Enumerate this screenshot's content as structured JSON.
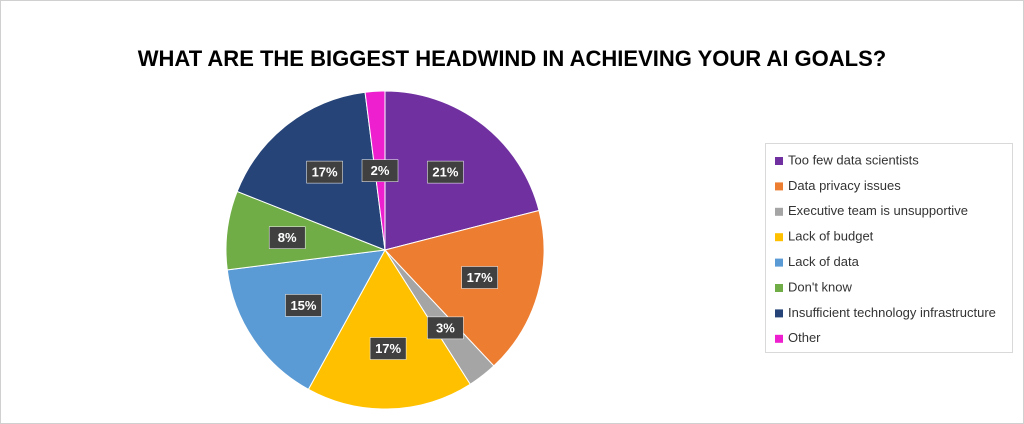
{
  "chart_data": {
    "type": "pie",
    "title": "WHAT ARE THE BIGGEST HEADWIND IN ACHIEVING YOUR AI GOALS?",
    "categories": [
      "Too few data scientists",
      "Data privacy issues",
      "Executive team is unsupportive",
      "Lack of budget",
      "Lack of data",
      "Don't know",
      "Insufficient technology infrastructure",
      "Other"
    ],
    "values": [
      21,
      17,
      3,
      17,
      15,
      8,
      17,
      2
    ],
    "value_labels": [
      "21%",
      "17%",
      "3%",
      "17%",
      "15%",
      "8%",
      "17%",
      "2%"
    ],
    "colors": [
      "#7030a0",
      "#ed7d31",
      "#a5a5a5",
      "#ffc000",
      "#5b9bd5",
      "#70ad47",
      "#264478",
      "#ee1fcf"
    ],
    "legend": "right"
  }
}
